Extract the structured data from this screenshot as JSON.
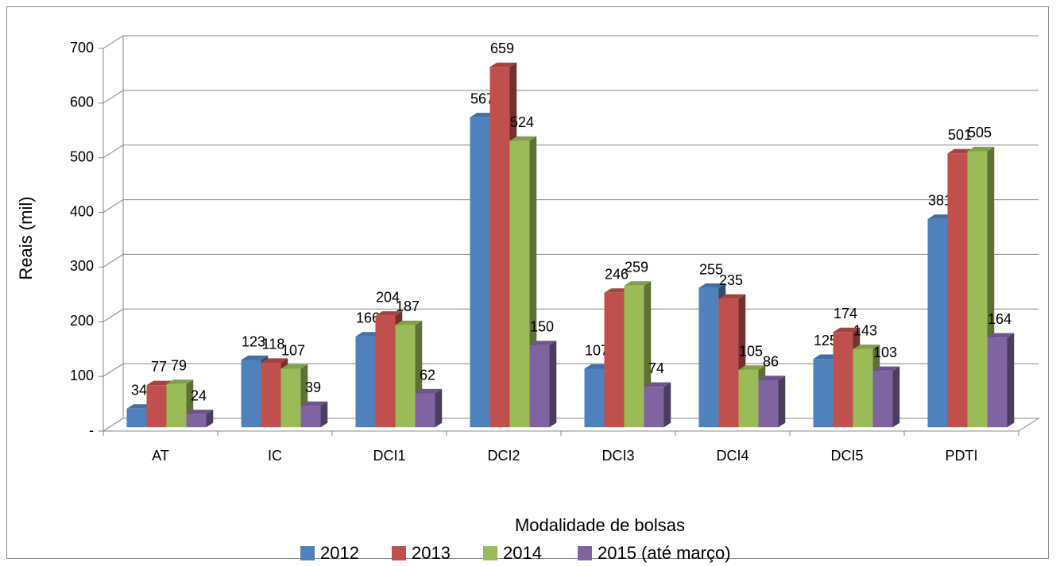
{
  "chart_data": {
    "type": "bar3d",
    "x_label": "Modalidade de bolsas",
    "y_label": "Reais (mil)",
    "categories": [
      "AT",
      "IC",
      "DCI1",
      "DCI2",
      "DCI3",
      "DCI4",
      "DCI5",
      "PDTI"
    ],
    "series": [
      {
        "name": "2012",
        "color": "#4f81bd",
        "values": [
          34,
          123,
          166,
          567,
          107,
          255,
          125,
          381
        ]
      },
      {
        "name": "2013",
        "color": "#c0504d",
        "values": [
          77,
          118,
          204,
          659,
          246,
          235,
          174,
          501
        ]
      },
      {
        "name": "2014",
        "color": "#9bbb59",
        "values": [
          79,
          107,
          187,
          524,
          259,
          105,
          143,
          505
        ]
      },
      {
        "name": "2015 (até março)",
        "color": "#8064a2",
        "values": [
          24,
          39,
          62,
          150,
          74,
          86,
          103,
          164
        ]
      }
    ],
    "ylim": [
      0,
      700
    ],
    "yticks": [
      {
        "value": 0,
        "label": "-"
      },
      100,
      200,
      300,
      400,
      500,
      600,
      700
    ],
    "grid": true,
    "legend": "bottom"
  }
}
